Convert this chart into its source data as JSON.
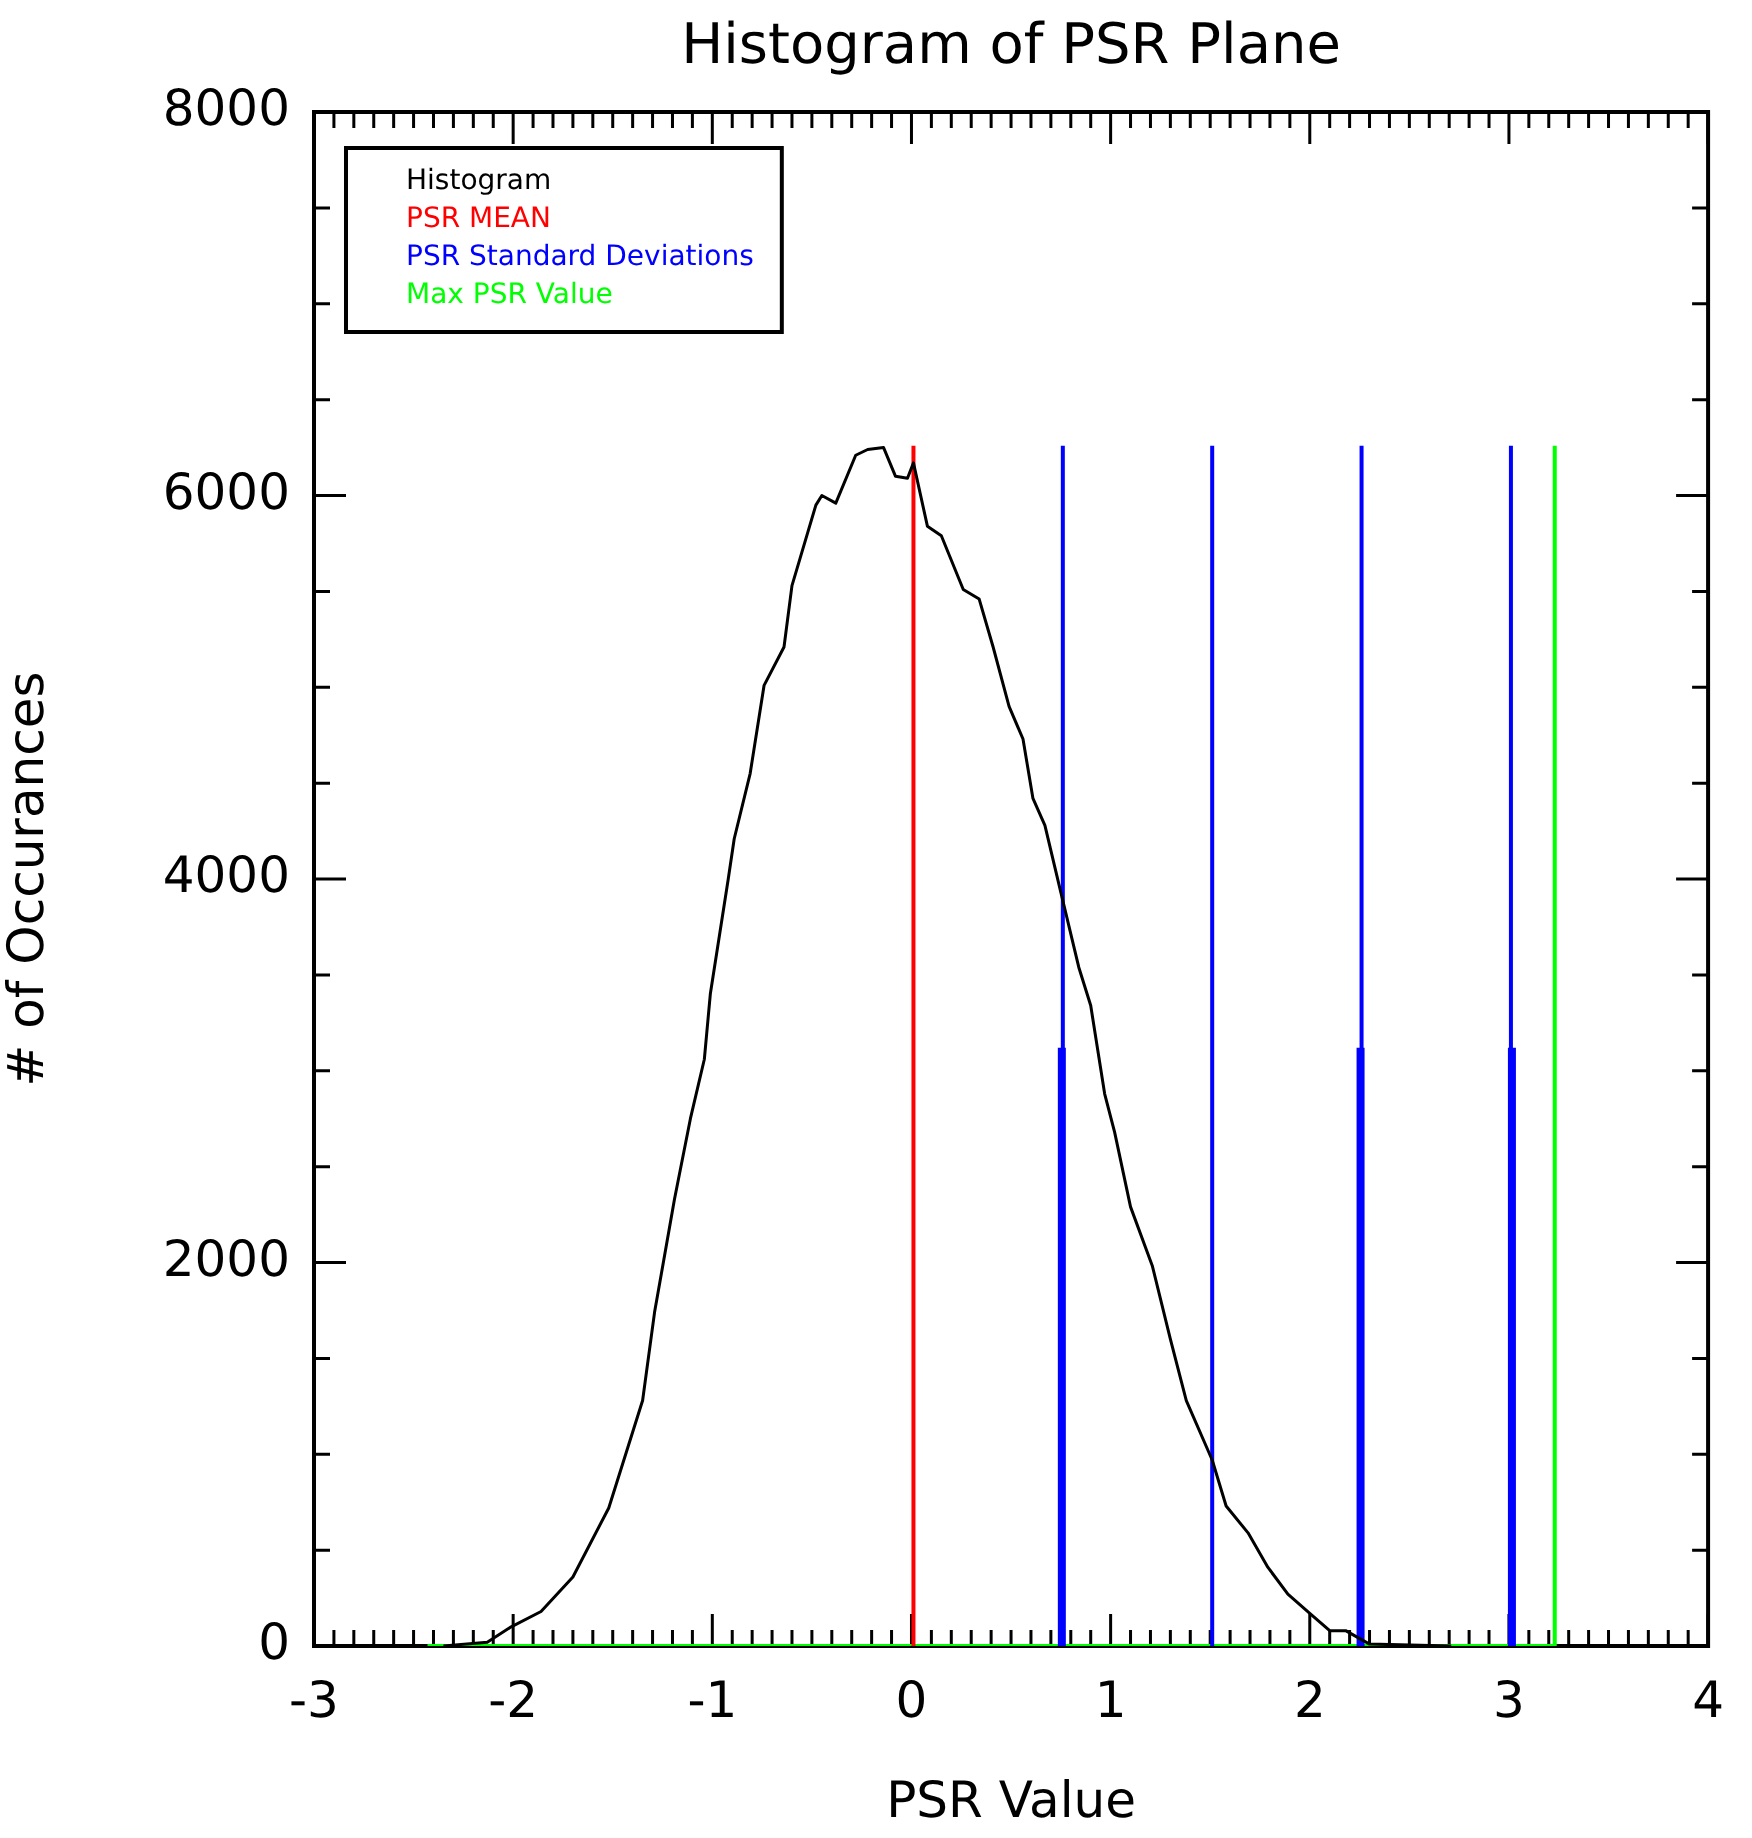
{
  "chart_data": {
    "type": "line",
    "title": "Histogram of PSR Plane",
    "xlabel": "PSR Value",
    "ylabel": "# of Occurances",
    "legend": "top left",
    "marker": "none",
    "grid": false,
    "xlim": [
      -3,
      4
    ],
    "ylim": [
      0,
      8000
    ],
    "xticks": [
      -3,
      {
        "value": -2.9,
        "label": null
      },
      {
        "value": -2.8,
        "label": null
      },
      {
        "value": -2.7,
        "label": null
      },
      {
        "value": -2.6,
        "label": null
      },
      {
        "value": -2.5,
        "label": null
      },
      {
        "value": -2.4,
        "label": null
      },
      {
        "value": -2.3,
        "label": null
      },
      {
        "value": -2.2,
        "label": null
      },
      {
        "value": -2.1,
        "label": null
      },
      -2,
      {
        "value": -1.9,
        "label": null
      },
      {
        "value": -1.8,
        "label": null
      },
      {
        "value": -1.7,
        "label": null
      },
      {
        "value": -1.6,
        "label": null
      },
      {
        "value": -1.5,
        "label": null
      },
      {
        "value": -1.4,
        "label": null
      },
      {
        "value": -1.3,
        "label": null
      },
      {
        "value": -1.2,
        "label": null
      },
      {
        "value": -1.1,
        "label": null
      },
      -1,
      {
        "value": -0.9,
        "label": null
      },
      {
        "value": -0.8,
        "label": null
      },
      {
        "value": -0.7,
        "label": null
      },
      {
        "value": -0.6,
        "label": null
      },
      {
        "value": -0.5,
        "label": null
      },
      {
        "value": -0.4,
        "label": null
      },
      {
        "value": -0.3,
        "label": null
      },
      {
        "value": -0.2,
        "label": null
      },
      {
        "value": -0.1,
        "label": null
      },
      0,
      {
        "value": 0.1,
        "label": null
      },
      {
        "value": 0.2,
        "label": null
      },
      {
        "value": 0.3,
        "label": null
      },
      {
        "value": 0.4,
        "label": null
      },
      {
        "value": 0.5,
        "label": null
      },
      {
        "value": 0.6,
        "label": null
      },
      {
        "value": 0.7,
        "label": null
      },
      {
        "value": 0.8,
        "label": null
      },
      {
        "value": 0.9,
        "label": null
      },
      1,
      {
        "value": 1.1,
        "label": null
      },
      {
        "value": 1.2,
        "label": null
      },
      {
        "value": 1.3,
        "label": null
      },
      {
        "value": 1.4,
        "label": null
      },
      {
        "value": 1.5,
        "label": null
      },
      {
        "value": 1.6,
        "label": null
      },
      {
        "value": 1.7,
        "label": null
      },
      {
        "value": 1.8,
        "label": null
      },
      {
        "value": 1.9,
        "label": null
      },
      2,
      {
        "value": 2.1,
        "label": null
      },
      {
        "value": 2.2,
        "label": null
      },
      {
        "value": 2.3,
        "label": null
      },
      {
        "value": 2.4,
        "label": null
      },
      {
        "value": 2.5,
        "label": null
      },
      {
        "value": 2.6,
        "label": null
      },
      {
        "value": 2.7,
        "label": null
      },
      {
        "value": 2.8,
        "label": null
      },
      {
        "value": 2.9,
        "label": null
      },
      3,
      {
        "value": 3.1,
        "label": null
      },
      {
        "value": 3.2,
        "label": null
      },
      {
        "value": 3.3,
        "label": null
      },
      {
        "value": 3.4,
        "label": null
      },
      {
        "value": 3.5,
        "label": null
      },
      {
        "value": 3.6,
        "label": null
      },
      {
        "value": 3.7,
        "label": null
      },
      {
        "value": 3.8,
        "label": null
      },
      {
        "value": 3.9,
        "label": null
      },
      4
    ],
    "yticks": [
      0,
      {
        "value": 500,
        "label": null
      },
      {
        "value": 1000,
        "label": null
      },
      {
        "value": 1500,
        "label": null
      },
      2000,
      {
        "value": 2500,
        "label": null
      },
      {
        "value": 3000,
        "label": null
      },
      {
        "value": 3500,
        "label": null
      },
      4000,
      {
        "value": 4500,
        "label": null
      },
      {
        "value": 5000,
        "label": null
      },
      {
        "value": 5500,
        "label": null
      },
      6000,
      {
        "value": 6500,
        "label": null
      },
      {
        "value": 7000,
        "label": null
      },
      {
        "value": 7500,
        "label": null
      },
      8000
    ],
    "series": [
      {
        "name": "Histogram",
        "color": "#000000",
        "x": [
          -2.35,
          -2.13,
          -2.01,
          -1.86,
          -1.7,
          -1.52,
          -1.35,
          -1.29,
          -1.19,
          -1.11,
          -1.04,
          -1.01,
          -0.92,
          -0.89,
          -0.81,
          -0.74,
          -0.64,
          -0.6,
          -0.48,
          -0.45,
          -0.38,
          -0.28,
          -0.22,
          -0.14,
          -0.08,
          -0.02,
          0.01,
          0.08,
          0.15,
          0.26,
          0.34,
          0.41,
          0.49,
          0.56,
          0.61,
          0.67,
          0.75,
          0.84,
          0.9,
          0.97,
          1.02,
          1.1,
          1.21,
          1.3,
          1.38,
          1.51,
          1.58,
          1.69,
          1.79,
          1.89,
          2,
          2.1,
          2.18,
          2.3,
          2.71
        ],
        "values": [
          0,
          20,
          100,
          180,
          360,
          720,
          1280,
          1740,
          2330,
          2750,
          3060,
          3400,
          4000,
          4210,
          4550,
          5010,
          5210,
          5530,
          5950,
          6000,
          5960,
          6210,
          6240,
          6250,
          6100,
          6090,
          6170,
          5840,
          5790,
          5510,
          5460,
          5210,
          4900,
          4730,
          4420,
          4280,
          3930,
          3540,
          3340,
          2880,
          2680,
          2290,
          1980,
          1600,
          1280,
          970,
          730,
          590,
          410,
          270,
          170,
          80,
          80,
          10,
          0
        ]
      },
      {
        "name": "PSR MEAN",
        "color": "#ff0000",
        "x": [
          0.01,
          0.01
        ],
        "values": [
          0,
          6260
        ]
      },
      {
        "name": "PSR Standard Deviations",
        "color": "#0000ff",
        "x": [
          0.76,
          0.76
        ],
        "values": [
          0,
          6260
        ]
      },
      {
        "color": "#0000ff",
        "x": [
          1.51,
          1.51
        ],
        "values": [
          0,
          6260
        ]
      },
      {
        "color": "#0000ff",
        "x": [
          2.26,
          2.26
        ],
        "values": [
          0,
          6260
        ]
      },
      {
        "color": "#0000ff",
        "x": [
          3.01,
          3.01
        ],
        "values": [
          0,
          6260
        ]
      },
      {
        "color": "#0000ff",
        "x": [
          0.755,
          0.755
        ],
        "values": [
          0,
          3120
        ]
      },
      {
        "color": "#0000ff",
        "x": [
          2.255,
          2.255
        ],
        "values": [
          0,
          3120
        ]
      },
      {
        "color": "#0000ff",
        "x": [
          3.015,
          3.015
        ],
        "values": [
          0,
          3120
        ]
      },
      {
        "name": "Max PSR Value",
        "color": "#00ff00",
        "x": [
          3.23,
          3.23
        ],
        "values": [
          0,
          6260
        ]
      },
      {
        "color": "#00ff00",
        "x": [
          -2.43,
          3.23
        ],
        "values": [
          0,
          0
        ]
      }
    ]
  }
}
